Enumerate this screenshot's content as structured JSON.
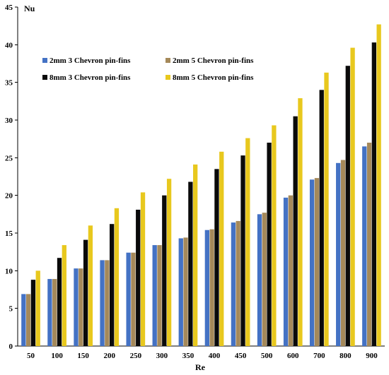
{
  "chart_data": {
    "type": "bar",
    "title": "",
    "xlabel": "Re",
    "ylabel": "Nu",
    "categories": [
      "50",
      "100",
      "150",
      "200",
      "250",
      "300",
      "350",
      "400",
      "450",
      "500",
      "600",
      "700",
      "800",
      "900"
    ],
    "ylim": [
      0,
      45
    ],
    "yticks": [
      0,
      5,
      10,
      15,
      20,
      25,
      30,
      35,
      40,
      45
    ],
    "grid": false,
    "legend": "upper-left, two columns",
    "series": [
      {
        "name": "2mm 3 Chevron pin-fins",
        "color": "#4472c4",
        "values": [
          6.9,
          8.9,
          10.3,
          11.4,
          12.4,
          13.4,
          14.3,
          15.4,
          16.4,
          17.5,
          19.7,
          22.1,
          24.3,
          26.5
        ]
      },
      {
        "name": "2mm 5 Chevron pin-fins",
        "color": "#a5895a",
        "values": [
          6.9,
          8.9,
          10.3,
          11.4,
          12.4,
          13.4,
          14.4,
          15.5,
          16.6,
          17.7,
          20.0,
          22.3,
          24.7,
          27.0
        ]
      },
      {
        "name": "8mm 3 Chevron pin-fins",
        "color": "#0a0a0a",
        "values": [
          8.8,
          11.7,
          14.1,
          16.2,
          18.1,
          20.0,
          21.8,
          23.5,
          25.3,
          27.0,
          30.5,
          34.0,
          37.2,
          40.3
        ]
      },
      {
        "name": "8mm 5 Chevron pin-fins",
        "color": "#e8c81e",
        "values": [
          10.0,
          13.4,
          16.0,
          18.3,
          20.4,
          22.2,
          24.1,
          25.8,
          27.6,
          29.3,
          32.9,
          36.3,
          39.6,
          42.7
        ]
      }
    ]
  }
}
